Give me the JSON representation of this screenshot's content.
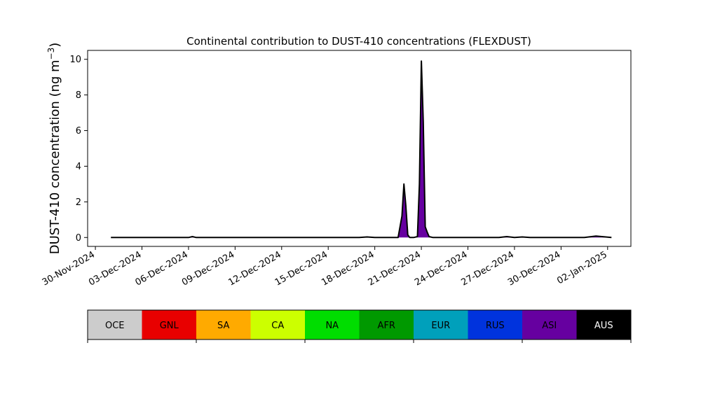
{
  "chart_data": {
    "type": "area",
    "title": "Continental contribution to DUST-410 concentrations (FLEXDUST)",
    "ylabel": "DUST-410 concentration (ng m",
    "ylabel_unit_sup": "−3",
    "ylabel_close": ")",
    "xlabel": "",
    "xlim": [
      "2024-11-29T12:00",
      "2025-01-03T12:00"
    ],
    "ylim": [
      -0.5,
      10.5
    ],
    "x_ticks": [
      {
        "date": "2024-11-30",
        "label": "30-Nov-2024"
      },
      {
        "date": "2024-12-03",
        "label": "03-Dec-2024"
      },
      {
        "date": "2024-12-06",
        "label": "06-Dec-2024"
      },
      {
        "date": "2024-12-09",
        "label": "09-Dec-2024"
      },
      {
        "date": "2024-12-12",
        "label": "12-Dec-2024"
      },
      {
        "date": "2024-12-15",
        "label": "15-Dec-2024"
      },
      {
        "date": "2024-12-18",
        "label": "18-Dec-2024"
      },
      {
        "date": "2024-12-21",
        "label": "21-Dec-2024"
      },
      {
        "date": "2024-12-24",
        "label": "24-Dec-2024"
      },
      {
        "date": "2024-12-27",
        "label": "27-Dec-2024"
      },
      {
        "date": "2024-12-30",
        "label": "30-Dec-2024"
      },
      {
        "date": "2025-01-02",
        "label": "02-Jan-2025"
      }
    ],
    "y_ticks": [
      0,
      2,
      4,
      6,
      8,
      10
    ],
    "grid": false,
    "total_line_color": "#000000",
    "fill_color": "#6600a0",
    "series_fill": "ASI",
    "x": [
      "2024-12-01T00:00",
      "2024-12-06T00:00",
      "2024-12-06T06:00",
      "2024-12-06T12:00",
      "2024-12-17T00:00",
      "2024-12-17T12:00",
      "2024-12-18T00:00",
      "2024-12-19T12:00",
      "2024-12-19T18:00",
      "2024-12-19T21:00",
      "2024-12-20T00:00",
      "2024-12-20T03:00",
      "2024-12-20T06:00",
      "2024-12-20T12:00",
      "2024-12-20T18:00",
      "2024-12-20T21:00",
      "2024-12-21T00:00",
      "2024-12-21T03:00",
      "2024-12-21T06:00",
      "2024-12-21T09:00",
      "2024-12-21T12:00",
      "2024-12-21T18:00",
      "2024-12-22T00:00",
      "2024-12-26T00:00",
      "2024-12-26T12:00",
      "2024-12-27T00:00",
      "2024-12-27T12:00",
      "2024-12-28T00:00",
      "2024-12-31T12:00",
      "2025-01-01T06:00",
      "2025-01-01T18:00",
      "2025-01-02T06:00"
    ],
    "values": [
      0,
      0,
      0.05,
      0,
      0,
      0.03,
      0,
      0,
      1.2,
      3.0,
      1.8,
      0.15,
      0,
      0,
      0.05,
      3.0,
      9.9,
      6.5,
      0.6,
      0.3,
      0.05,
      0,
      0,
      0,
      0.05,
      0,
      0.03,
      0,
      0,
      0.08,
      0.04,
      0
    ],
    "legend": {
      "placement": "bottom",
      "entries": [
        {
          "name": "OCE",
          "color": "#cccccc",
          "text_color": "#000000"
        },
        {
          "name": "GNL",
          "color": "#e80000",
          "text_color": "#000000"
        },
        {
          "name": "SA",
          "color": "#ffaa00",
          "text_color": "#000000"
        },
        {
          "name": "CA",
          "color": "#ccff00",
          "text_color": "#000000"
        },
        {
          "name": "NA",
          "color": "#00dd00",
          "text_color": "#000000"
        },
        {
          "name": "AFR",
          "color": "#009900",
          "text_color": "#000000"
        },
        {
          "name": "EUR",
          "color": "#00a0bb",
          "text_color": "#000000"
        },
        {
          "name": "RUS",
          "color": "#0033dd",
          "text_color": "#000000"
        },
        {
          "name": "ASI",
          "color": "#6600a0",
          "text_color": "#000000"
        },
        {
          "name": "AUS",
          "color": "#000000",
          "text_color": "#ffffff"
        }
      ]
    }
  }
}
